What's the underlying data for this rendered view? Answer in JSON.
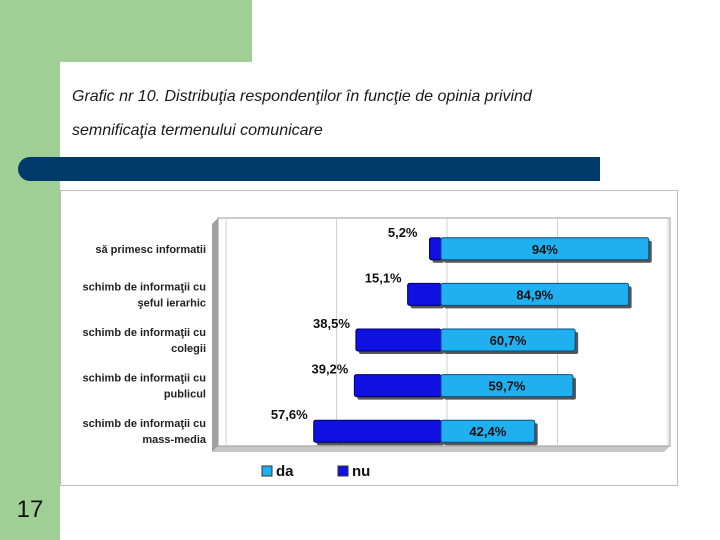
{
  "slide": {
    "number": "17"
  },
  "title": {
    "line1": "Grafic nr 10. Distribuţia respondenţilor în funcţie de opinia privind",
    "line2": "semnificaţia termenului comunicare"
  },
  "colors": {
    "green": "#9fcf94",
    "navy": "#003a6b",
    "da": "#20b0f0",
    "nu": "#1010e0"
  },
  "chart_data": {
    "type": "bar",
    "orientation": "horizontal",
    "stacked": true,
    "percent": true,
    "categories": [
      [
        "să primesc informatii"
      ],
      [
        "schimb de informaţii cu",
        "şeful ierarhic"
      ],
      [
        "schimb de informaţii cu",
        "colegii"
      ],
      [
        "schimb de informaţii cu",
        "publicul"
      ],
      [
        "schimb de informaţii cu",
        "mass-media"
      ]
    ],
    "series": [
      {
        "name": "nu",
        "values": [
          5.2,
          15.1,
          38.5,
          39.2,
          57.6
        ],
        "labels": [
          "5,2%",
          "15,1%",
          "38,5%",
          "39,2%",
          "57,6%"
        ],
        "color": "#1010e0"
      },
      {
        "name": "da",
        "values": [
          94,
          84.9,
          60.7,
          59.7,
          42.4
        ],
        "labels": [
          "94%",
          "84,9%",
          "60,7%",
          "59,7%",
          "42,4%"
        ],
        "color": "#20b0f0"
      }
    ],
    "legend": [
      "da",
      "nu"
    ],
    "legend_position": "bottom",
    "xlim": [
      -100,
      100
    ]
  }
}
